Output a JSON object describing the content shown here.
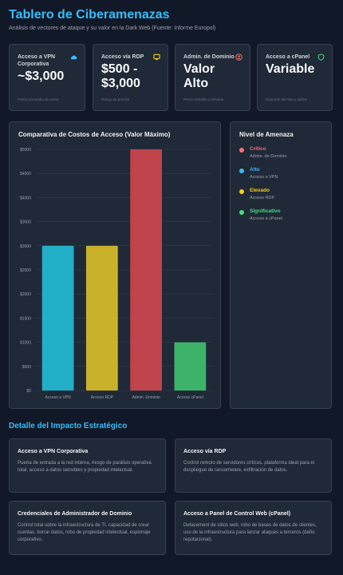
{
  "header": {
    "title": "Tablero de Ciberamenazas",
    "subtitle": "Análisis de vectores de ataque y su valor en la Dark Web (Fuente: Informe Europol)"
  },
  "kpis": [
    {
      "label": "Acceso a VPN Corporativa",
      "value": "~$3,000",
      "note": "Precio promedio de venta",
      "icon": "cloud-icon",
      "color": "#38bdf8"
    },
    {
      "label": "Acceso vía RDP",
      "value": "$500 - $3,000",
      "note": "Rango de precios",
      "icon": "monitor-icon",
      "color": "#facc15"
    },
    {
      "label": "Admin. de Dominio",
      "value": "Valor Alto",
      "note": "Precio variable y elevado",
      "icon": "user-circle-icon",
      "color": "#f87171"
    },
    {
      "label": "Acceso a cPanel",
      "value": "Variable",
      "note": "Depende del sitio y daños",
      "icon": "shield-icon",
      "color": "#4ade80"
    }
  ],
  "chart_data": {
    "type": "bar",
    "title": "Comparativa de Costos de Acceso (Valor Máximo)",
    "categories": [
      "Acceso a VPN",
      "Acceso RDP",
      "Admin. Dominio",
      "Acceso cPanel"
    ],
    "values": [
      3000,
      3000,
      5000,
      1000
    ],
    "colors": [
      "#22b0c8",
      "#c9b22a",
      "#c0444b",
      "#3db36a"
    ],
    "ylim": [
      0,
      5000
    ],
    "yticks": [
      "$0",
      "$500",
      "$1000",
      "$1500",
      "$2000",
      "$2500",
      "$3000",
      "$3500",
      "$4000",
      "$4500",
      "$5000"
    ],
    "xlabel": "",
    "ylabel": "",
    "grid": true
  },
  "legend": {
    "title": "Nivel de Amenaza",
    "items": [
      {
        "name": "Crítico",
        "desc": "Admin. de Dominio",
        "color": "#f87171"
      },
      {
        "name": "Alto",
        "desc": "Acceso a VPN",
        "color": "#38bdf8"
      },
      {
        "name": "Elevado",
        "desc": "Acceso RDP",
        "color": "#facc15"
      },
      {
        "name": "Significativo",
        "desc": "Acceso a cPanel",
        "color": "#4ade80"
      }
    ]
  },
  "impact": {
    "title": "Detalle del Impacto Estratégico",
    "cards": [
      {
        "title": "Acceso a VPN Corporativa",
        "text": "Puerta de entrada a la red interna, riesgo de parálisis operativa total, acceso a datos sensibles y propiedad intelectual."
      },
      {
        "title": "Acceso vía RDP",
        "text": "Control remoto de servidores críticos, plataforma ideal para el despliegue de ransomware, exfiltración de datos."
      },
      {
        "title": "Credenciales de Administrador de Dominio",
        "text": "Control total sobre la infraestructura de TI, capacidad de crear cuentas, borrar datos, robo de propiedad intelectual, espionaje corporativo."
      },
      {
        "title": "Acceso a Panel de Control Web (cPanel)",
        "text": "Defacement de sitios web, robo de bases de datos de clientes, uso de la infraestructura para lanzar ataques a terceros (daño reputacional)."
      }
    ]
  }
}
